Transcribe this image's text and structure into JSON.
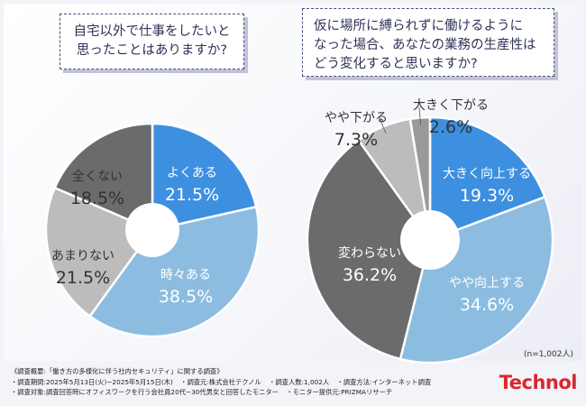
{
  "question1": {
    "lines": [
      "自宅以外で仕事をしたいと",
      "思ったことはありますか?"
    ]
  },
  "question2": {
    "lines": [
      "仮に場所に縛られずに働けるように",
      "なった場合、あなたの業務の生産性は",
      "どう変化すると思いますか?"
    ]
  },
  "colors": {
    "dark_blue": "#3d8fe0",
    "light_blue": "#8cbde0",
    "light_gray": "#bcbcbc",
    "mid_gray": "#9a9a9a",
    "dark_gray": "#6b6b6b",
    "brand_red": "#d8282e"
  },
  "chart_data": [
    {
      "type": "pie",
      "title": "自宅以外で仕事をしたいと思ったことはありますか?",
      "categories": [
        "よくある",
        "時々ある",
        "あまりない",
        "全くない"
      ],
      "values": [
        21.5,
        38.5,
        21.5,
        18.5
      ],
      "value_labels": [
        "21.5%",
        "38.5%",
        "21.5%",
        "18.5%"
      ],
      "colors": [
        "#3d8fe0",
        "#8cbde0",
        "#bcbcbc",
        "#6b6b6b"
      ]
    },
    {
      "type": "pie",
      "title": "仮に場所に縛られずに働けるようになった場合、あなたの業務の生産性はどう変化すると思いますか?",
      "categories": [
        "大きく向上する",
        "やや向上する",
        "変わらない",
        "やや下がる",
        "大きく下がる"
      ],
      "values": [
        19.3,
        34.6,
        36.2,
        7.3,
        2.6
      ],
      "value_labels": [
        "19.3%",
        "34.6%",
        "36.2%",
        "7.3%",
        "2.6%"
      ],
      "colors": [
        "#3d8fe0",
        "#8cbde0",
        "#6b6b6b",
        "#bcbcbc",
        "#9a9a9a"
      ]
    }
  ],
  "sample_note": "(n=1,002人)",
  "footer": {
    "survey_title": "《調査概要:「働き方の多様化に伴う社内セキュリティ」に関する調査》",
    "period": "・調査期間:2025年5月13日(火)~2025年5月15日(木)",
    "organizer": "・調査元:株式会社テクノル",
    "respondents": "・調査人数:1,002人",
    "method": "・調査方法:インターネット調査",
    "target": "・調査対象:調査回答時にオフィスワークを行う会社員20代~30代男女と回答したモニター",
    "provider": "・モニター提供元:PRIZMAリサーチ"
  },
  "brand": "Technol"
}
